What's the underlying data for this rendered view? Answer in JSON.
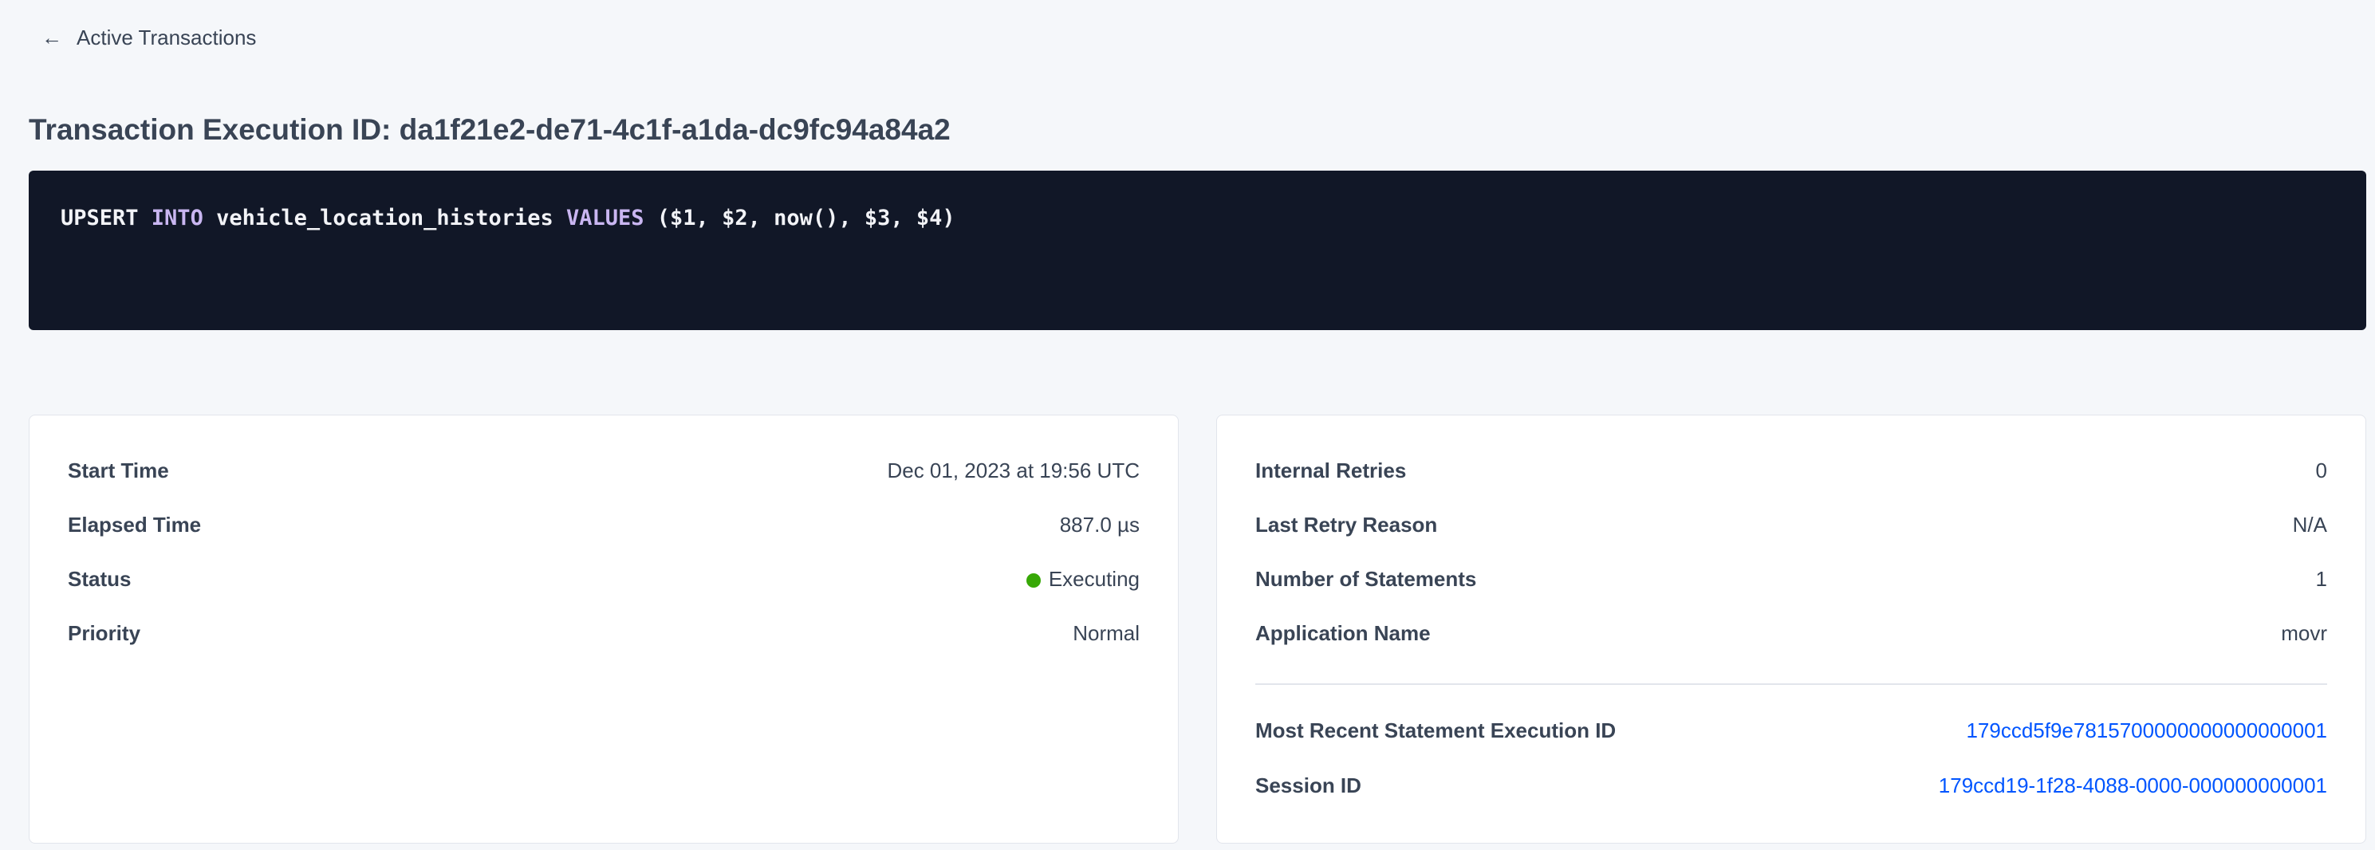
{
  "back_link": {
    "label": "Active Transactions",
    "icon": "arrow-left-icon"
  },
  "title": "Transaction Execution ID: da1f21e2-de71-4c1f-a1da-dc9fc94a84a2",
  "sql": {
    "tokens": [
      {
        "text": "UPSERT ",
        "keyword": false
      },
      {
        "text": "INTO",
        "keyword": true
      },
      {
        "text": " vehicle_location_histories ",
        "keyword": false
      },
      {
        "text": "VALUES",
        "keyword": true
      },
      {
        "text": " ($1, $2, now(), $3, $4)",
        "keyword": false
      }
    ]
  },
  "left_card": {
    "rows": [
      {
        "label": "Start Time",
        "value": "Dec 01, 2023 at 19:56 UTC"
      },
      {
        "label": "Elapsed Time",
        "value": "887.0 µs"
      },
      {
        "label": "Status",
        "value": "Executing",
        "status_color": "#37a806"
      },
      {
        "label": "Priority",
        "value": "Normal"
      }
    ]
  },
  "right_card": {
    "rows": [
      {
        "label": "Internal Retries",
        "value": "0"
      },
      {
        "label": "Last Retry Reason",
        "value": "N/A"
      },
      {
        "label": "Number of Statements",
        "value": "1"
      },
      {
        "label": "Application Name",
        "value": "movr"
      }
    ],
    "links": [
      {
        "label": "Most Recent Statement Execution ID",
        "value": "179ccd5f9e7815700000000000000001"
      },
      {
        "label": "Session ID",
        "value": "179ccd19-1f28-4088-0000-000000000001"
      }
    ]
  },
  "colors": {
    "link": "#0055ff",
    "code_bg": "#111727",
    "keyword": "#c9b6f1"
  }
}
